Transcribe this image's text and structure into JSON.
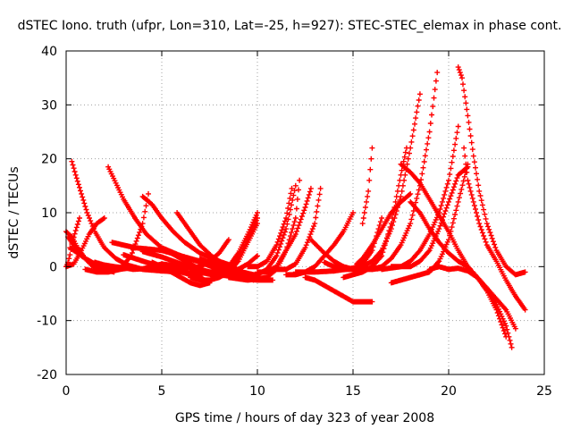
{
  "chart_data": {
    "type": "scatter",
    "title": "dSTEC Iono. truth (ufpr, Lon=310, Lat=-25, h=927): STEC-STEC_elemax in phase cont.",
    "xlabel": "GPS time / hours of day 323 of year 2008",
    "ylabel": "dSTEC  / TECUs",
    "xlim": [
      0,
      25
    ],
    "ylim": [
      -20,
      40
    ],
    "xticks": [
      0,
      5,
      10,
      15,
      20,
      25
    ],
    "yticks": [
      -20,
      -10,
      0,
      10,
      20,
      30,
      40
    ],
    "grid": true,
    "marker": "+",
    "series_color": "#ff0000",
    "series": [
      {
        "x": [
          0.1,
          0.3,
          0.6,
          1.0,
          1.5,
          2.0,
          2.5
        ],
        "y": [
          5.5,
          4.5,
          3.0,
          1.5,
          0.5,
          -0.5,
          -1.0
        ]
      },
      {
        "x": [
          0.0,
          0.3,
          0.6,
          1.0,
          1.4,
          1.8
        ],
        "y": [
          6.5,
          5.5,
          3.5,
          1.5,
          0.0,
          -0.5
        ]
      },
      {
        "x": [
          0.2,
          0.6,
          1.0,
          1.5,
          2.0,
          2.6,
          3.2
        ],
        "y": [
          3.5,
          2.5,
          1.5,
          0.5,
          -0.3,
          -0.6,
          -0.3
        ]
      },
      {
        "x": [
          0.0,
          0.1,
          0.2,
          0.3,
          0.5,
          0.7
        ],
        "y": [
          0.0,
          0.8,
          2.2,
          4.2,
          6.7,
          9.0
        ]
      },
      {
        "x": [
          0.3,
          0.5,
          0.8,
          1.1,
          1.5,
          2.0,
          2.6,
          3.2,
          4.0,
          5.0,
          6.0,
          7.0,
          7.5
        ],
        "y": [
          19.5,
          17.0,
          13.5,
          10.0,
          6.5,
          3.5,
          1.5,
          0.3,
          -0.5,
          -0.8,
          -1.0,
          -2.0,
          -3.0
        ]
      },
      {
        "x": [
          0.0,
          0.4,
          0.8,
          1.2,
          1.6,
          2.0
        ],
        "y": [
          0.0,
          0.5,
          3.0,
          6.0,
          8.0,
          9.0
        ]
      },
      {
        "x": [
          1.0,
          1.6,
          2.2,
          2.8,
          3.4,
          4.0,
          4.3
        ],
        "y": [
          -0.5,
          -1.0,
          -1.0,
          -0.5,
          2.0,
          8.0,
          13.5
        ]
      },
      {
        "x": [
          1.5,
          2.0,
          2.5,
          3.0,
          3.5,
          4.0,
          4.5,
          5.0
        ],
        "y": [
          0.8,
          0.3,
          0.0,
          -0.2,
          -0.5,
          -0.4,
          0.0,
          0.5
        ]
      },
      {
        "x": [
          2.2,
          2.6,
          3.0,
          3.6,
          4.2,
          5.0,
          6.0,
          7.0,
          8.0,
          9.0,
          9.8
        ],
        "y": [
          18.5,
          15.5,
          12.5,
          9.0,
          6.0,
          3.5,
          2.0,
          0.8,
          -0.5,
          -1.5,
          -2.5
        ]
      },
      {
        "x": [
          2.4,
          3.0,
          3.6,
          4.2,
          5.0,
          6.0,
          7.0,
          8.0,
          8.8
        ],
        "y": [
          4.5,
          4.0,
          3.5,
          3.3,
          3.0,
          2.0,
          1.0,
          0.5,
          0.0
        ]
      },
      {
        "x": [
          3.0,
          3.6,
          4.2,
          5.0,
          5.6,
          6.2,
          6.8,
          7.4
        ],
        "y": [
          2.2,
          1.5,
          0.8,
          0.0,
          -0.5,
          -1.0,
          -1.5,
          -1.0
        ]
      },
      {
        "x": [
          4.0,
          4.5,
          5.0,
          5.6,
          6.2,
          7.0,
          8.0,
          8.8
        ],
        "y": [
          13.0,
          11.5,
          9.0,
          6.5,
          4.5,
          2.5,
          1.0,
          0.0
        ]
      },
      {
        "x": [
          4.0,
          5.0,
          6.0,
          7.0,
          7.6,
          8.2
        ],
        "y": [
          2.8,
          1.8,
          0.5,
          -1.0,
          -1.5,
          -1.0
        ]
      },
      {
        "x": [
          4.5,
          5.0,
          5.5,
          6.0,
          6.5,
          7.0,
          7.5
        ],
        "y": [
          0.8,
          0.0,
          -1.0,
          -2.0,
          -3.0,
          -3.5,
          -3.0
        ]
      },
      {
        "x": [
          5.0,
          6.0,
          7.0,
          8.0,
          9.0,
          10.0,
          10.8
        ],
        "y": [
          0.5,
          0.0,
          -0.5,
          -1.5,
          -2.0,
          -2.5,
          -2.5
        ]
      },
      {
        "x": [
          5.5,
          6.0,
          6.5,
          7.0,
          7.5,
          8.0,
          8.5,
          9.0,
          9.5,
          10.0
        ],
        "y": [
          2.5,
          1.5,
          0.5,
          -0.5,
          -1.0,
          -1.3,
          -1.0,
          -0.5,
          0.5,
          2.0
        ]
      },
      {
        "x": [
          5.8,
          6.2,
          6.6,
          7.0,
          7.6,
          8.2,
          9.0,
          9.8
        ],
        "y": [
          10.0,
          8.0,
          6.0,
          4.0,
          2.0,
          0.5,
          -0.8,
          -1.5
        ]
      },
      {
        "x": [
          6.5,
          7.0,
          7.5,
          8.0,
          8.5,
          9.0,
          9.5,
          10.0
        ],
        "y": [
          -2.0,
          -2.5,
          -2.5,
          -2.0,
          -1.0,
          1.0,
          4.5,
          8.0
        ]
      },
      {
        "x": [
          6.8,
          7.5,
          8.0,
          8.5,
          9.0,
          9.5,
          10.0
        ],
        "y": [
          -0.5,
          -1.0,
          -0.8,
          0.0,
          2.5,
          6.0,
          10.0
        ]
      },
      {
        "x": [
          7.0,
          7.5,
          8.0,
          8.5,
          9.0,
          9.5,
          10.0
        ],
        "y": [
          1.5,
          0.8,
          0.3,
          0.0,
          1.5,
          5.0,
          9.0
        ]
      },
      {
        "x": [
          6.5,
          7.0,
          7.5,
          8.0,
          8.5
        ],
        "y": [
          -0.5,
          0.0,
          1.0,
          2.5,
          5.0
        ]
      },
      {
        "x": [
          8.0,
          9.0,
          10.0,
          10.5,
          11.0,
          11.5,
          12.0
        ],
        "y": [
          -1.0,
          -1.5,
          -1.5,
          -0.5,
          2.0,
          7.0,
          15.0
        ]
      },
      {
        "x": [
          8.5,
          9.5,
          10.5,
          11.0,
          11.5,
          12.0,
          12.2
        ],
        "y": [
          -2.0,
          -2.5,
          -2.0,
          -0.5,
          3.0,
          9.0,
          16.0
        ]
      },
      {
        "x": [
          9.5,
          10.0,
          10.5,
          11.0,
          11.5,
          11.8
        ],
        "y": [
          0.0,
          0.0,
          1.0,
          4.0,
          9.0,
          14.5
        ]
      },
      {
        "x": [
          10.0,
          10.5,
          11.0,
          11.5,
          12.0,
          12.5,
          12.8
        ],
        "y": [
          -1.0,
          -1.0,
          0.0,
          3.0,
          6.0,
          11.0,
          14.5
        ]
      },
      {
        "x": [
          11.0,
          11.5,
          12.0,
          12.5,
          13.0,
          13.3
        ],
        "y": [
          -0.5,
          -0.5,
          0.5,
          3.5,
          8.0,
          14.5
        ]
      },
      {
        "x": [
          11.5,
          12.0,
          12.5,
          13.0,
          13.5,
          14.0,
          14.5,
          15.0
        ],
        "y": [
          -1.5,
          -1.5,
          -1.0,
          0.0,
          2.0,
          4.0,
          6.5,
          10.0
        ]
      },
      {
        "x": [
          12.0,
          13.0,
          14.0,
          15.0,
          15.5
        ],
        "y": [
          -1.0,
          -1.0,
          -0.8,
          -0.3,
          0.0
        ]
      },
      {
        "x": [
          12.5,
          13.0,
          13.5,
          14.0,
          14.5,
          15.0,
          15.5,
          16.0
        ],
        "y": [
          -2.0,
          -2.5,
          -3.5,
          -4.5,
          -5.5,
          -6.5,
          -6.5,
          -6.5
        ]
      },
      {
        "x": [
          12.8,
          13.5,
          14.0,
          14.5,
          15.0,
          15.5,
          16.0,
          16.5
        ],
        "y": [
          5.0,
          2.5,
          1.0,
          0.0,
          -0.5,
          -0.5,
          -0.5,
          -0.3
        ]
      },
      {
        "x": [
          13.5,
          14.0,
          14.5,
          15.0,
          15.5,
          16.0,
          16.5
        ],
        "y": [
          0.8,
          0.0,
          -0.5,
          -0.3,
          0.5,
          3.0,
          9.0
        ]
      },
      {
        "x": [
          14.0,
          15.0,
          15.5,
          16.0,
          16.5,
          17.0,
          17.5,
          18.0,
          18.5
        ],
        "y": [
          -0.5,
          -0.5,
          0.0,
          1.0,
          3.0,
          7.0,
          13.0,
          22.0,
          32.0
        ]
      },
      {
        "x": [
          14.5,
          15.0,
          15.5,
          16.0,
          16.5,
          17.0,
          17.5,
          17.8
        ],
        "y": [
          -2.0,
          -1.5,
          -1.0,
          0.0,
          2.0,
          8.0,
          17.0,
          22.0
        ]
      },
      {
        "x": [
          15.5,
          15.8,
          16.0
        ],
        "y": [
          8.0,
          14.0,
          22.0
        ]
      },
      {
        "x": [
          15.2,
          15.5,
          16.0,
          16.5,
          17.0,
          17.5,
          18.0
        ],
        "y": [
          0.5,
          1.5,
          4.0,
          7.0,
          10.0,
          12.0,
          13.5
        ]
      },
      {
        "x": [
          16.0,
          16.5,
          17.0,
          17.5,
          18.0,
          18.5,
          19.0,
          19.4
        ],
        "y": [
          -0.5,
          0.0,
          1.5,
          4.0,
          8.0,
          15.0,
          25.0,
          36.0
        ]
      },
      {
        "x": [
          16.5,
          17.5,
          18.0,
          18.5,
          19.0,
          19.5,
          20.0,
          20.5
        ],
        "y": [
          -0.5,
          0.0,
          1.0,
          3.0,
          6.0,
          10.0,
          16.0,
          26.0
        ]
      },
      {
        "x": [
          17.0,
          18.0,
          19.0,
          19.5,
          20.0,
          20.5,
          21.0
        ],
        "y": [
          -3.0,
          -2.0,
          -1.0,
          1.0,
          5.0,
          12.0,
          19.0
        ]
      },
      {
        "x": [
          17.0,
          18.0,
          18.5,
          19.0,
          19.5,
          20.0,
          20.5,
          21.0
        ],
        "y": [
          0.0,
          0.0,
          1.0,
          3.0,
          7.0,
          12.0,
          17.0,
          18.5
        ]
      },
      {
        "x": [
          17.5,
          18.0,
          18.5,
          19.0,
          19.5,
          20.0,
          20.5,
          21.0,
          21.5,
          22.0,
          22.5,
          23.0,
          23.5
        ],
        "y": [
          19.0,
          17.5,
          15.5,
          12.5,
          9.5,
          6.5,
          3.0,
          0.0,
          -2.0,
          -4.0,
          -6.0,
          -8.0,
          -11.5
        ]
      },
      {
        "x": [
          18.0,
          18.5,
          19.0,
          19.5,
          20.0,
          20.5,
          21.0,
          21.5,
          22.0,
          22.5,
          23.0
        ],
        "y": [
          12.0,
          10.0,
          7.0,
          4.5,
          2.5,
          1.0,
          0.0,
          -2.0,
          -4.5,
          -8.0,
          -13.0
        ]
      },
      {
        "x": [
          19.0,
          19.5,
          20.0,
          20.5,
          21.0,
          21.5,
          22.0,
          22.5,
          23.0,
          23.3
        ],
        "y": [
          -0.5,
          0.0,
          -0.5,
          -0.3,
          -0.8,
          -2.0,
          -4.0,
          -7.0,
          -11.0,
          -15.0
        ]
      },
      {
        "x": [
          20.5,
          20.7,
          21.0,
          21.3,
          21.6,
          22.0,
          22.5,
          23.0,
          23.5,
          24.0
        ],
        "y": [
          37.0,
          35.0,
          28.0,
          20.5,
          14.0,
          8.0,
          3.0,
          0.0,
          -1.5,
          -1.0
        ]
      },
      {
        "x": [
          20.8,
          21.0,
          21.3,
          21.6,
          22.0,
          22.5,
          23.0,
          23.5,
          24.0
        ],
        "y": [
          22.0,
          16.0,
          12.0,
          8.0,
          4.0,
          1.0,
          -2.5,
          -5.5,
          -8.0
        ]
      }
    ]
  }
}
